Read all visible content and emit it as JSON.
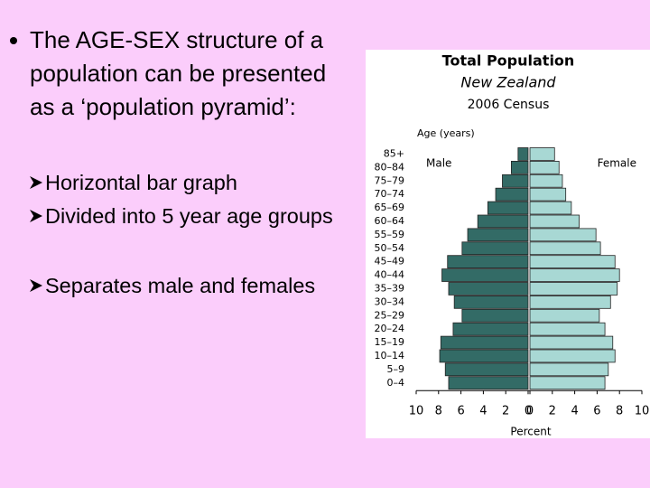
{
  "slide": {
    "bullets": [
      {
        "text": "The AGE-SEX structure of a population can be presented as a ‘population pyramid’:",
        "sub": [
          "Horizontal bar graph",
          "Divided into 5 year age groups",
          "Separates male and females"
        ]
      }
    ]
  },
  "chart_data": {
    "type": "population_pyramid",
    "title": "Total Population",
    "subtitle": "New Zealand",
    "subtitle2": "2006 Census",
    "y_label": "Age (years)",
    "x_label": "Percent",
    "categories": [
      "85+",
      "80–84",
      "75–79",
      "70–74",
      "65–69",
      "60–64",
      "55–59",
      "50–54",
      "45–49",
      "40–44",
      "35–39",
      "30–34",
      "25–29",
      "20–24",
      "15–19",
      "10–14",
      "5–9",
      "0–4"
    ],
    "series": [
      {
        "name": "Male",
        "color": "#336b66",
        "values": [
          0.9,
          1.5,
          2.3,
          2.9,
          3.6,
          4.5,
          5.4,
          5.9,
          7.2,
          7.7,
          7.1,
          6.6,
          5.9,
          6.7,
          7.8,
          7.9,
          7.4,
          7.1
        ]
      },
      {
        "name": "Female",
        "color": "#a8d8d4",
        "values": [
          2.2,
          2.6,
          2.9,
          3.2,
          3.7,
          4.4,
          5.9,
          6.3,
          7.6,
          8.0,
          7.8,
          7.2,
          6.2,
          6.7,
          7.4,
          7.6,
          7.0,
          6.7
        ]
      }
    ],
    "xlim": [
      0,
      10
    ],
    "xticks": [
      0,
      2,
      4,
      6,
      8,
      10
    ]
  }
}
